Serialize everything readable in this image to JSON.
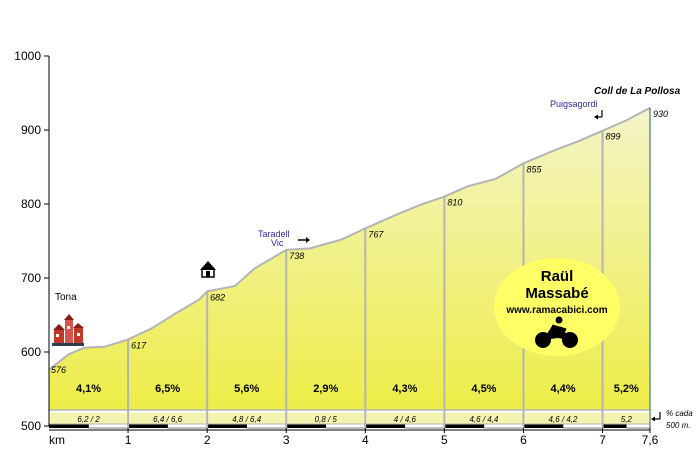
{
  "chart_data": {
    "type": "area",
    "title": "Coll de La Pollosa",
    "xlabel": "km",
    "ylabel": "",
    "xlim": [
      0,
      7.6
    ],
    "ylim": [
      500,
      1000
    ],
    "y_ticks": [
      "500",
      "600",
      "700",
      "800",
      "900",
      "1000"
    ],
    "x_ticks": [
      {
        "x": 1,
        "label": "1"
      },
      {
        "x": 2,
        "label": "2"
      },
      {
        "x": 3,
        "label": "3"
      },
      {
        "x": 4,
        "label": "4"
      },
      {
        "x": 5,
        "label": "5"
      },
      {
        "x": 6,
        "label": "6"
      },
      {
        "x": 7,
        "label": "7"
      },
      {
        "x": 7.6,
        "label": "7,6"
      }
    ],
    "km_points": [
      {
        "x": 0,
        "y": 576,
        "label": "576"
      },
      {
        "x": 1,
        "y": 617,
        "label": "617"
      },
      {
        "x": 2,
        "y": 682,
        "label": "682"
      },
      {
        "x": 3,
        "y": 738,
        "label": "738"
      },
      {
        "x": 4,
        "y": 767,
        "label": "767"
      },
      {
        "x": 5,
        "y": 810,
        "label": "810"
      },
      {
        "x": 6,
        "y": 855,
        "label": "855"
      },
      {
        "x": 7,
        "y": 899,
        "label": "899"
      },
      {
        "x": 7.6,
        "y": 930,
        "label": "930"
      }
    ],
    "profile": [
      [
        0,
        576
      ],
      [
        0.25,
        597
      ],
      [
        0.45,
        606
      ],
      [
        0.7,
        607
      ],
      [
        1,
        617
      ],
      [
        1.3,
        632
      ],
      [
        1.6,
        652
      ],
      [
        1.9,
        671
      ],
      [
        2,
        682
      ],
      [
        2.35,
        689
      ],
      [
        2.6,
        713
      ],
      [
        3,
        738
      ],
      [
        3.3,
        740
      ],
      [
        3.7,
        752
      ],
      [
        4,
        767
      ],
      [
        4.4,
        786
      ],
      [
        4.7,
        799
      ],
      [
        5,
        810
      ],
      [
        5.3,
        824
      ],
      [
        5.65,
        834
      ],
      [
        6,
        855
      ],
      [
        6.4,
        873
      ],
      [
        6.7,
        885
      ],
      [
        7,
        899
      ],
      [
        7.3,
        913
      ],
      [
        7.6,
        930
      ]
    ],
    "gradients": [
      {
        "label": "4,1%",
        "sub": "6,2  /  2"
      },
      {
        "label": "6,5%",
        "sub": "6,4  /  6,6"
      },
      {
        "label": "5,6%",
        "sub": "4,8  /  6,4"
      },
      {
        "label": "2,9%",
        "sub": "0,8  /  5"
      },
      {
        "label": "4,3%",
        "sub": "4  /  4,6"
      },
      {
        "label": "4,5%",
        "sub": "4,6  /  4,4"
      },
      {
        "label": "4,4%",
        "sub": "4,6  /  4,2"
      },
      {
        "label": "5,2%",
        "sub": "5,2"
      }
    ],
    "per500_label": [
      "% cada",
      "500 m."
    ],
    "places": [
      {
        "name": "Tona",
        "x": 0,
        "y": 576
      },
      {
        "name": "Taradell",
        "name2": "Vic",
        "x": 3,
        "y": 738
      },
      {
        "name": "Puigsagordi",
        "x": 7,
        "y": 899
      }
    ]
  },
  "logo": {
    "line1": "Raül",
    "line2": "Massabé",
    "url": "www.ramacabici.com"
  },
  "colors": {
    "fill_top": "#f2f2bf",
    "fill_bottom": "#eeee4a",
    "outline": "#b4b4b4",
    "place_blue": "#2a2aa0",
    "logo_fill": "#ffff66"
  }
}
